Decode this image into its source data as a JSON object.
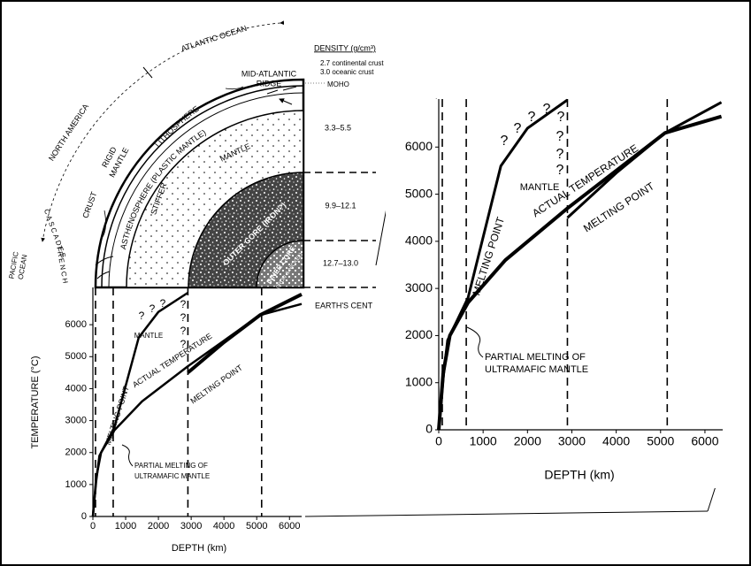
{
  "diagram": {
    "atlantic_ocean": "ATLANTIC OCEAN",
    "north_america": "NORTH AMERICA",
    "pacific_ocean": [
      "PACIFIC",
      "OCEAN"
    ],
    "density_title": "DENSITY (g/cm³)",
    "continental_crust": "2.7 continental crust",
    "oceanic_crust": "3.0 oceanic crust",
    "moho": "MOHO",
    "mid_atlantic_ridge": [
      "MID-ATLANTIC",
      "RIDGE"
    ],
    "lithosphere": "LITHOSPHERE",
    "rigid_mantle": [
      "RIGID",
      "MANTLE"
    ],
    "asthenosphere": "ASTHENOSPHERE (PLASTIC MANTLE)",
    "crust": "CRUST",
    "cascades": "CASCADES",
    "trench": "TRENCH",
    "mantle": "MANTLE",
    "stiffer": "STIFFER",
    "outer_core": "OUTER CORE (IRON?)",
    "inner_core": "INNER CORE",
    "inner_core_note": "(IRON & NICKEL)",
    "density_mantle": "3.3–5.5",
    "density_outer_core": "9.9–12.1",
    "density_inner_core": "12.7–13.0",
    "earths_center": "EARTH'S CENT"
  },
  "chart_data": [
    {
      "type": "line",
      "ylabel": "TEMPERATURE (°C)",
      "xlabel": "DEPTH (km)",
      "xlim": [
        0,
        6371
      ],
      "ylim": [
        0,
        7000
      ],
      "xticks": [
        0,
        1000,
        2000,
        3000,
        4000,
        5000,
        6000
      ],
      "yticks": [
        0,
        1000,
        2000,
        3000,
        4000,
        5000,
        6000
      ],
      "boundaries": [
        80,
        620,
        2900,
        5150
      ],
      "series": [
        {
          "name": "MELTING POINT",
          "color": "#000000",
          "x": [
            0,
            100,
            200,
            660,
            1400,
            2000,
            2900
          ],
          "values": [
            0,
            1100,
            1900,
            2800,
            5600,
            6400,
            7000
          ]
        },
        {
          "name": "ACTUAL TEMPERATURE",
          "color": "#000000",
          "x": [
            0,
            100,
            250,
            660,
            1500,
            2900,
            4000,
            5100,
            6371
          ],
          "values": [
            0,
            1200,
            2000,
            2700,
            3600,
            4700,
            5500,
            6300,
            6650
          ]
        },
        {
          "name": "MELTING POINT",
          "color": "#000000",
          "x": [
            2900,
            4000,
            5100,
            6371
          ],
          "values": [
            4500,
            5450,
            6300,
            6950
          ]
        }
      ],
      "annotations": {
        "mantle": "MANTLE",
        "partial_melting": [
          "PARTIAL MELTING OF",
          "ULTRAMAFIC MANTLE"
        ],
        "question_marks": [
          "?",
          "?",
          "?",
          "?",
          "?",
          "?",
          "?"
        ]
      }
    },
    {
      "type": "line",
      "xlabel": "DEPTH (km)",
      "xlim": [
        0,
        6400
      ],
      "ylim": [
        0,
        7000
      ],
      "xticks": [
        0,
        1000,
        2000,
        3000,
        4000,
        5000,
        6000
      ],
      "yticks": [
        0,
        1000,
        2000,
        3000,
        4000,
        5000,
        6000
      ],
      "boundaries": [
        80,
        620,
        2900,
        5150
      ],
      "series": [
        {
          "name": "MELTING POINT",
          "color": "#000000",
          "x": [
            0,
            100,
            200,
            660,
            1400,
            2000,
            2900
          ],
          "values": [
            0,
            1100,
            1900,
            2800,
            5600,
            6400,
            7000
          ]
        },
        {
          "name": "ACTUAL TEMPERATURE",
          "color": "#000000",
          "x": [
            0,
            100,
            250,
            660,
            1500,
            2900,
            4000,
            5100,
            6371
          ],
          "values": [
            0,
            1200,
            2000,
            2700,
            3600,
            4700,
            5500,
            6300,
            6650
          ]
        },
        {
          "name": "MELTING POINT",
          "color": "#000000",
          "x": [
            2900,
            4000,
            5100,
            6371
          ],
          "values": [
            4500,
            5450,
            6300,
            6950
          ]
        }
      ],
      "annotations": {
        "mantle": "MANTLE",
        "partial_melting": [
          "PARTIAL MELTING OF",
          "ULTRAMAFIC MANTLE"
        ],
        "question_marks": [
          "?",
          "?",
          "?",
          "?",
          "?",
          "?",
          "?",
          "?"
        ]
      }
    }
  ]
}
